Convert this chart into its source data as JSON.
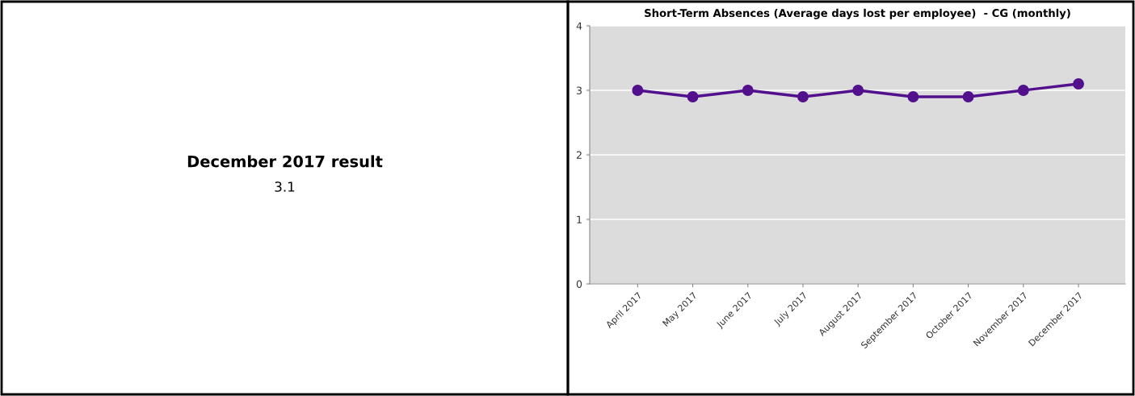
{
  "chart_data": [
    {
      "type": "other",
      "title": "December 2017 result",
      "annotations": [
        "3.1"
      ]
    },
    {
      "type": "line",
      "title": "Short-Term Absences (Average days lost per employee)  - CG (monthly)",
      "categories": [
        "April 2017",
        "May 2017",
        "June 2017",
        "July 2017",
        "August 2017",
        "September 2017",
        "October 2017",
        "November 2017",
        "December 2017"
      ],
      "series": [
        {
          "color": "#52108c",
          "values": [
            3.0,
            2.9,
            3.0,
            2.9,
            3.0,
            2.9,
            2.9,
            3.0,
            3.1
          ]
        }
      ],
      "ylim": [
        0,
        4
      ],
      "yticks": [
        0,
        1,
        2,
        3,
        4
      ],
      "grid": "y",
      "marker": "circle",
      "line_style": "solid",
      "legend": false
    }
  ]
}
